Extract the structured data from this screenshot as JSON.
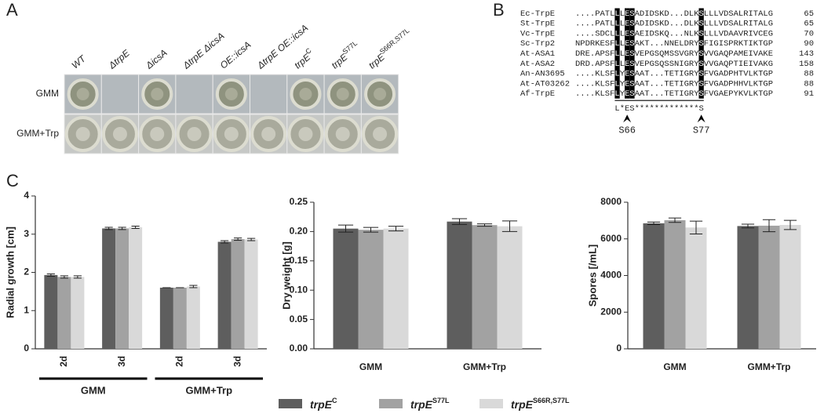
{
  "panels": [
    "A",
    "B",
    "C"
  ],
  "panel_a": {
    "columns": [
      {
        "text": "WT"
      },
      {
        "text": "ΔtrpE"
      },
      {
        "text": "ΔicsA"
      },
      {
        "text": "ΔtrpE ΔicsA"
      },
      {
        "text": "OE::icsA"
      },
      {
        "text": "ΔtrpE OE::icsA"
      },
      {
        "text": "trpE",
        "sup": "C"
      },
      {
        "text": "trpE",
        "sup": "S77L"
      },
      {
        "text": "trpE",
        "sup": "S66R,S77L"
      }
    ],
    "rows": [
      "GMM",
      "GMM+Trp"
    ]
  },
  "panel_b": {
    "rows": [
      {
        "name": "Ec-TrpE",
        "seq": "....PATLLLESADIDSKD...DLKSLLLVDSALRITALG",
        "end": "65"
      },
      {
        "name": "St-TrpE",
        "seq": "....PATLLLESADIDSKD...DLKSLLLVDSALRITALG",
        "end": "65"
      },
      {
        "name": "Vc-TrpE",
        "seq": "....SDCLLLESAEIDSKQ...NLKSLLLVDAAVRIVCEG",
        "end": "70"
      },
      {
        "name": "Sc-Trp2",
        "seq": "NPDRKESFLLESAKT...NNELDRYSFIGISPRKTIKTGP",
        "end": "90"
      },
      {
        "name": "At-ASA1",
        "seq": "DRE.APSFLLESVEPGSQMSSVGRYSVVGAQPAMEIVAKE",
        "end": "143"
      },
      {
        "name": "At-ASA2",
        "seq": "DRD.APSFLLESVEPGSQSSNIGRYSVVGAQPTIEIVAKG",
        "end": "158"
      },
      {
        "name": "An-AN3695",
        "seq": "....KLSFLYESAAT...TETIGRYSFVGADPHTVLKTGP",
        "end": "88"
      },
      {
        "name": "At-AT03262",
        "seq": "....KLSFLYESAAT...TETIGRYSFVGADPHHVLKTGP",
        "end": "88"
      },
      {
        "name": "Af-TrpE",
        "seq": "....KLSFLYESAAT...TETIGRYSFVGAEPYKVLKTGP",
        "end": "91"
      }
    ],
    "consensus": "L*ES*************S",
    "sites": [
      "S66",
      "S77"
    ]
  },
  "legend": [
    {
      "name": "trpE",
      "sup": "C",
      "color": "#5e5e5e"
    },
    {
      "name": "trpE",
      "sup": "S77L",
      "color": "#a2a2a2"
    },
    {
      "name": "trpE",
      "sup": "S66R,S77L",
      "color": "#d9d9d9"
    }
  ],
  "chart_data": [
    {
      "type": "bar",
      "y_label": "Radial growth [cm]",
      "categories": [
        "2d",
        "3d",
        "2d",
        "3d"
      ],
      "groups": [
        "GMM",
        "GMM+Trp"
      ],
      "ylim": [
        0,
        4
      ],
      "yticks": [
        0,
        1,
        2,
        3,
        4
      ],
      "series": [
        {
          "values": [
            1.93,
            3.15,
            1.6,
            2.8
          ],
          "errors": [
            0.03,
            0.03,
            0,
            0.03
          ]
        },
        {
          "values": [
            1.88,
            3.15,
            1.6,
            2.87
          ],
          "errors": [
            0.03,
            0.03,
            0,
            0.03
          ]
        },
        {
          "values": [
            1.88,
            3.18,
            1.63,
            2.86
          ],
          "errors": [
            0.03,
            0.03,
            0.03,
            0.03
          ]
        }
      ]
    },
    {
      "type": "bar",
      "y_label": "Dry weight [g]",
      "categories": [
        "GMM",
        "GMM+Trp"
      ],
      "ylim": [
        0,
        0.25
      ],
      "yticks": [
        {
          "value": 0,
          "label": "0.00"
        },
        0.05,
        {
          "value": 0.1,
          "label": "0.10"
        },
        0.15,
        {
          "value": 0.2,
          "label": "0.20"
        },
        0.25
      ],
      "series": [
        {
          "values": [
            0.205,
            0.217
          ],
          "errors": [
            0.006,
            0.005
          ]
        },
        {
          "values": [
            0.203,
            0.211
          ],
          "errors": [
            0.004,
            0.002
          ]
        },
        {
          "values": [
            0.205,
            0.209
          ],
          "errors": [
            0.004,
            0.009
          ]
        }
      ]
    },
    {
      "type": "bar",
      "y_label": "Spores [/mL]",
      "categories": [
        "GMM",
        "GMM+Trp"
      ],
      "ylim": [
        0,
        8000
      ],
      "yticks": [
        0,
        2000,
        4000,
        6000,
        8000
      ],
      "series": [
        {
          "values": [
            6850,
            6700
          ],
          "errors": [
            70,
            100
          ]
        },
        {
          "values": [
            7020,
            6720
          ],
          "errors": [
            120,
            330
          ]
        },
        {
          "values": [
            6620,
            6760
          ],
          "errors": [
            350,
            250
          ]
        }
      ]
    }
  ]
}
